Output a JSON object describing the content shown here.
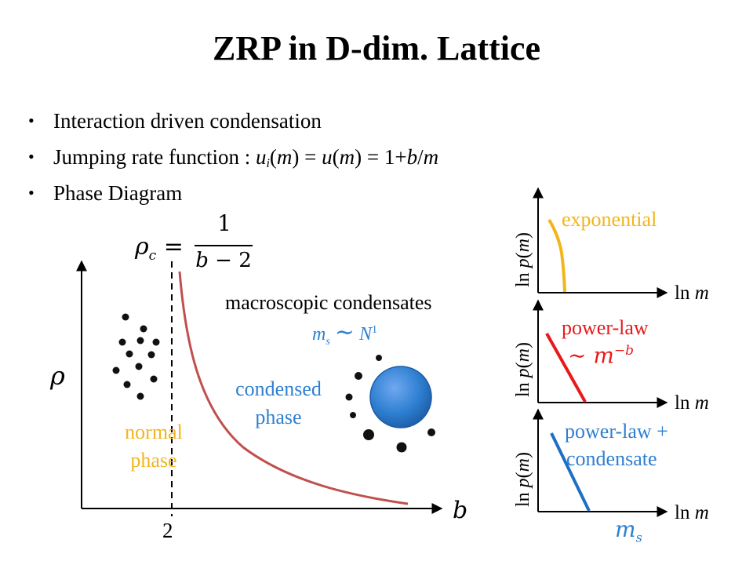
{
  "title": "ZRP in D-dim. Lattice",
  "bullets": [
    {
      "text": "Interaction driven condensation"
    },
    {
      "prefix": "Jumping rate function : ",
      "u": "u",
      "i": "i",
      "m": "m",
      "eq": " = ",
      "u2": "u",
      "m2": "m",
      "rhs": " = 1+",
      "b": "b",
      "slash": "/",
      "m3": "m"
    },
    {
      "text": "Phase Diagram"
    }
  ],
  "diagram": {
    "rho_c_lhs": "ρc =",
    "rho_c_num": "1",
    "rho_c_den": "b − 2",
    "y_axis": "ρ",
    "x_axis": "b",
    "x_tick": "2",
    "macro_label": "macroscopic condensates",
    "ms_scaling": "ms ∼ N",
    "ms_exponent": "1",
    "condensed_label_1": "condensed",
    "condensed_label_2": "phase",
    "normal_label_1": "normal",
    "normal_label_2": "phase"
  },
  "insets": [
    {
      "y_label": "ln p(m)",
      "x_label": "ln m",
      "curve_label": "exponential",
      "color": "#F2B51C"
    },
    {
      "y_label": "ln p(m)",
      "x_label": "ln m",
      "curve_label": "power-law",
      "curve_label_2": "∼ m−b",
      "color": "#E8191B"
    },
    {
      "y_label": "ln p(m)",
      "x_label": "ln m",
      "curve_label": "power-law +",
      "curve_label_2": "condensate",
      "marker": "ms",
      "color": "#1F6FC4"
    }
  ],
  "colors": {
    "curve": "#C0504D",
    "condensate": "#2E7FD1",
    "exponential": "#F2B51C",
    "power_law": "#E8191B",
    "condensate_line": "#1F6FC4"
  }
}
